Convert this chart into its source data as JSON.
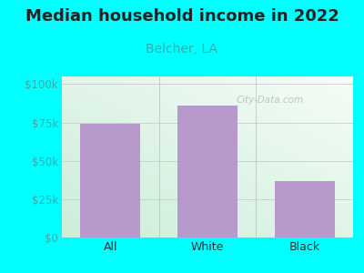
{
  "title": "Median household income in 2022",
  "subtitle": "Belcher, LA",
  "categories": [
    "All",
    "White",
    "Black"
  ],
  "values": [
    74000,
    86000,
    37000
  ],
  "bar_color": "#b899cc",
  "title_color": "#222222",
  "subtitle_color": "#3aacac",
  "bg_color": "#00ffff",
  "plot_bg_top_left": "#cceedd",
  "plot_bg_bottom_right": "#f0f8f0",
  "ytick_labels": [
    "$0",
    "$25k",
    "$50k",
    "$75k",
    "$100k"
  ],
  "ytick_values": [
    0,
    25000,
    50000,
    75000,
    100000
  ],
  "ylim": [
    0,
    105000
  ],
  "ytick_color": "#3aacac",
  "xtick_color": "#333333",
  "watermark": "City-Data.com",
  "title_fontsize": 13,
  "subtitle_fontsize": 10,
  "tick_fontsize": 8.5,
  "xtick_fontsize": 9
}
